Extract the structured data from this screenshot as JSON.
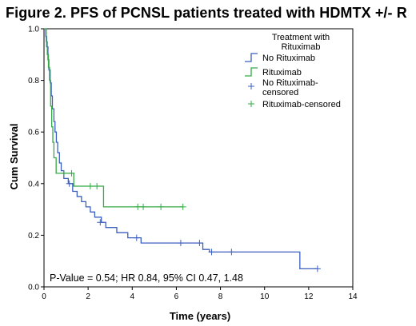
{
  "title": "Figure 2. PFS of PCNSL patients treated with HDMTX +/- R",
  "chart_data": {
    "type": "line",
    "xlabel": "Time (years)",
    "ylabel": "Cum Survival",
    "xlim": [
      0,
      14
    ],
    "ylim": [
      0,
      1.0
    ],
    "x_ticks": [
      0,
      2,
      4,
      6,
      8,
      10,
      12,
      14
    ],
    "y_ticks": [
      0.0,
      0.2,
      0.4,
      0.6,
      0.8,
      1.0
    ],
    "x_tick_labels": [
      "0",
      "2",
      "4",
      "6",
      "8",
      "10",
      "12",
      "14"
    ],
    "y_tick_labels": [
      "0.0",
      "0.2",
      "0.4",
      "0.6",
      "0.8",
      "1.0"
    ],
    "grid": false,
    "legend_title": "Treatment with Rituximab",
    "legend_position": "top-right",
    "annotation": "P-Value = 0.54; HR 0.84, 95% CI 0.47, 1.48",
    "legend": [
      {
        "label": "No Rituximab",
        "color": "#3b5fc0",
        "marker": "step"
      },
      {
        "label": "Rituximab",
        "color": "#33aa44",
        "marker": "step"
      },
      {
        "label": "No Rituximab-censored",
        "color": "#3b5fc0",
        "marker": "plus"
      },
      {
        "label": "Rituximab-censored",
        "color": "#33aa44",
        "marker": "plus"
      }
    ],
    "series": [
      {
        "name": "No Rituximab",
        "color": "#3b5fc0",
        "steps": [
          [
            0,
            1.0
          ],
          [
            0.08,
            0.97
          ],
          [
            0.12,
            0.93
          ],
          [
            0.18,
            0.88
          ],
          [
            0.22,
            0.84
          ],
          [
            0.28,
            0.79
          ],
          [
            0.33,
            0.74
          ],
          [
            0.38,
            0.69
          ],
          [
            0.45,
            0.64
          ],
          [
            0.5,
            0.6
          ],
          [
            0.56,
            0.56
          ],
          [
            0.62,
            0.52
          ],
          [
            0.7,
            0.48
          ],
          [
            0.78,
            0.45
          ],
          [
            0.9,
            0.42
          ],
          [
            1.1,
            0.4
          ],
          [
            1.3,
            0.37
          ],
          [
            1.5,
            0.35
          ],
          [
            1.7,
            0.33
          ],
          [
            1.9,
            0.31
          ],
          [
            2.1,
            0.29
          ],
          [
            2.3,
            0.27
          ],
          [
            2.6,
            0.25
          ],
          [
            2.8,
            0.23
          ],
          [
            3.3,
            0.21
          ],
          [
            3.8,
            0.19
          ],
          [
            4.4,
            0.17
          ],
          [
            7.2,
            0.145
          ],
          [
            7.5,
            0.135
          ],
          [
            11.6,
            0.07
          ],
          [
            12.4,
            0.07
          ]
        ],
        "censored": [
          [
            1.15,
            0.4
          ],
          [
            2.55,
            0.25
          ],
          [
            4.2,
            0.19
          ],
          [
            6.2,
            0.17
          ],
          [
            7.05,
            0.17
          ],
          [
            7.6,
            0.135
          ],
          [
            8.5,
            0.135
          ],
          [
            12.4,
            0.07
          ]
        ]
      },
      {
        "name": "Rituximab",
        "color": "#33aa44",
        "steps": [
          [
            0,
            1.0
          ],
          [
            0.1,
            0.95
          ],
          [
            0.15,
            0.9
          ],
          [
            0.2,
            0.85
          ],
          [
            0.25,
            0.8
          ],
          [
            0.3,
            0.7
          ],
          [
            0.35,
            0.62
          ],
          [
            0.4,
            0.56
          ],
          [
            0.45,
            0.5
          ],
          [
            0.55,
            0.44
          ],
          [
            1.35,
            0.39
          ],
          [
            2.7,
            0.31
          ],
          [
            6.3,
            0.31
          ]
        ],
        "censored": [
          [
            0.9,
            0.44
          ],
          [
            1.25,
            0.44
          ],
          [
            2.1,
            0.39
          ],
          [
            2.4,
            0.39
          ],
          [
            4.25,
            0.31
          ],
          [
            4.5,
            0.31
          ],
          [
            5.3,
            0.31
          ],
          [
            6.3,
            0.31
          ]
        ]
      }
    ]
  }
}
